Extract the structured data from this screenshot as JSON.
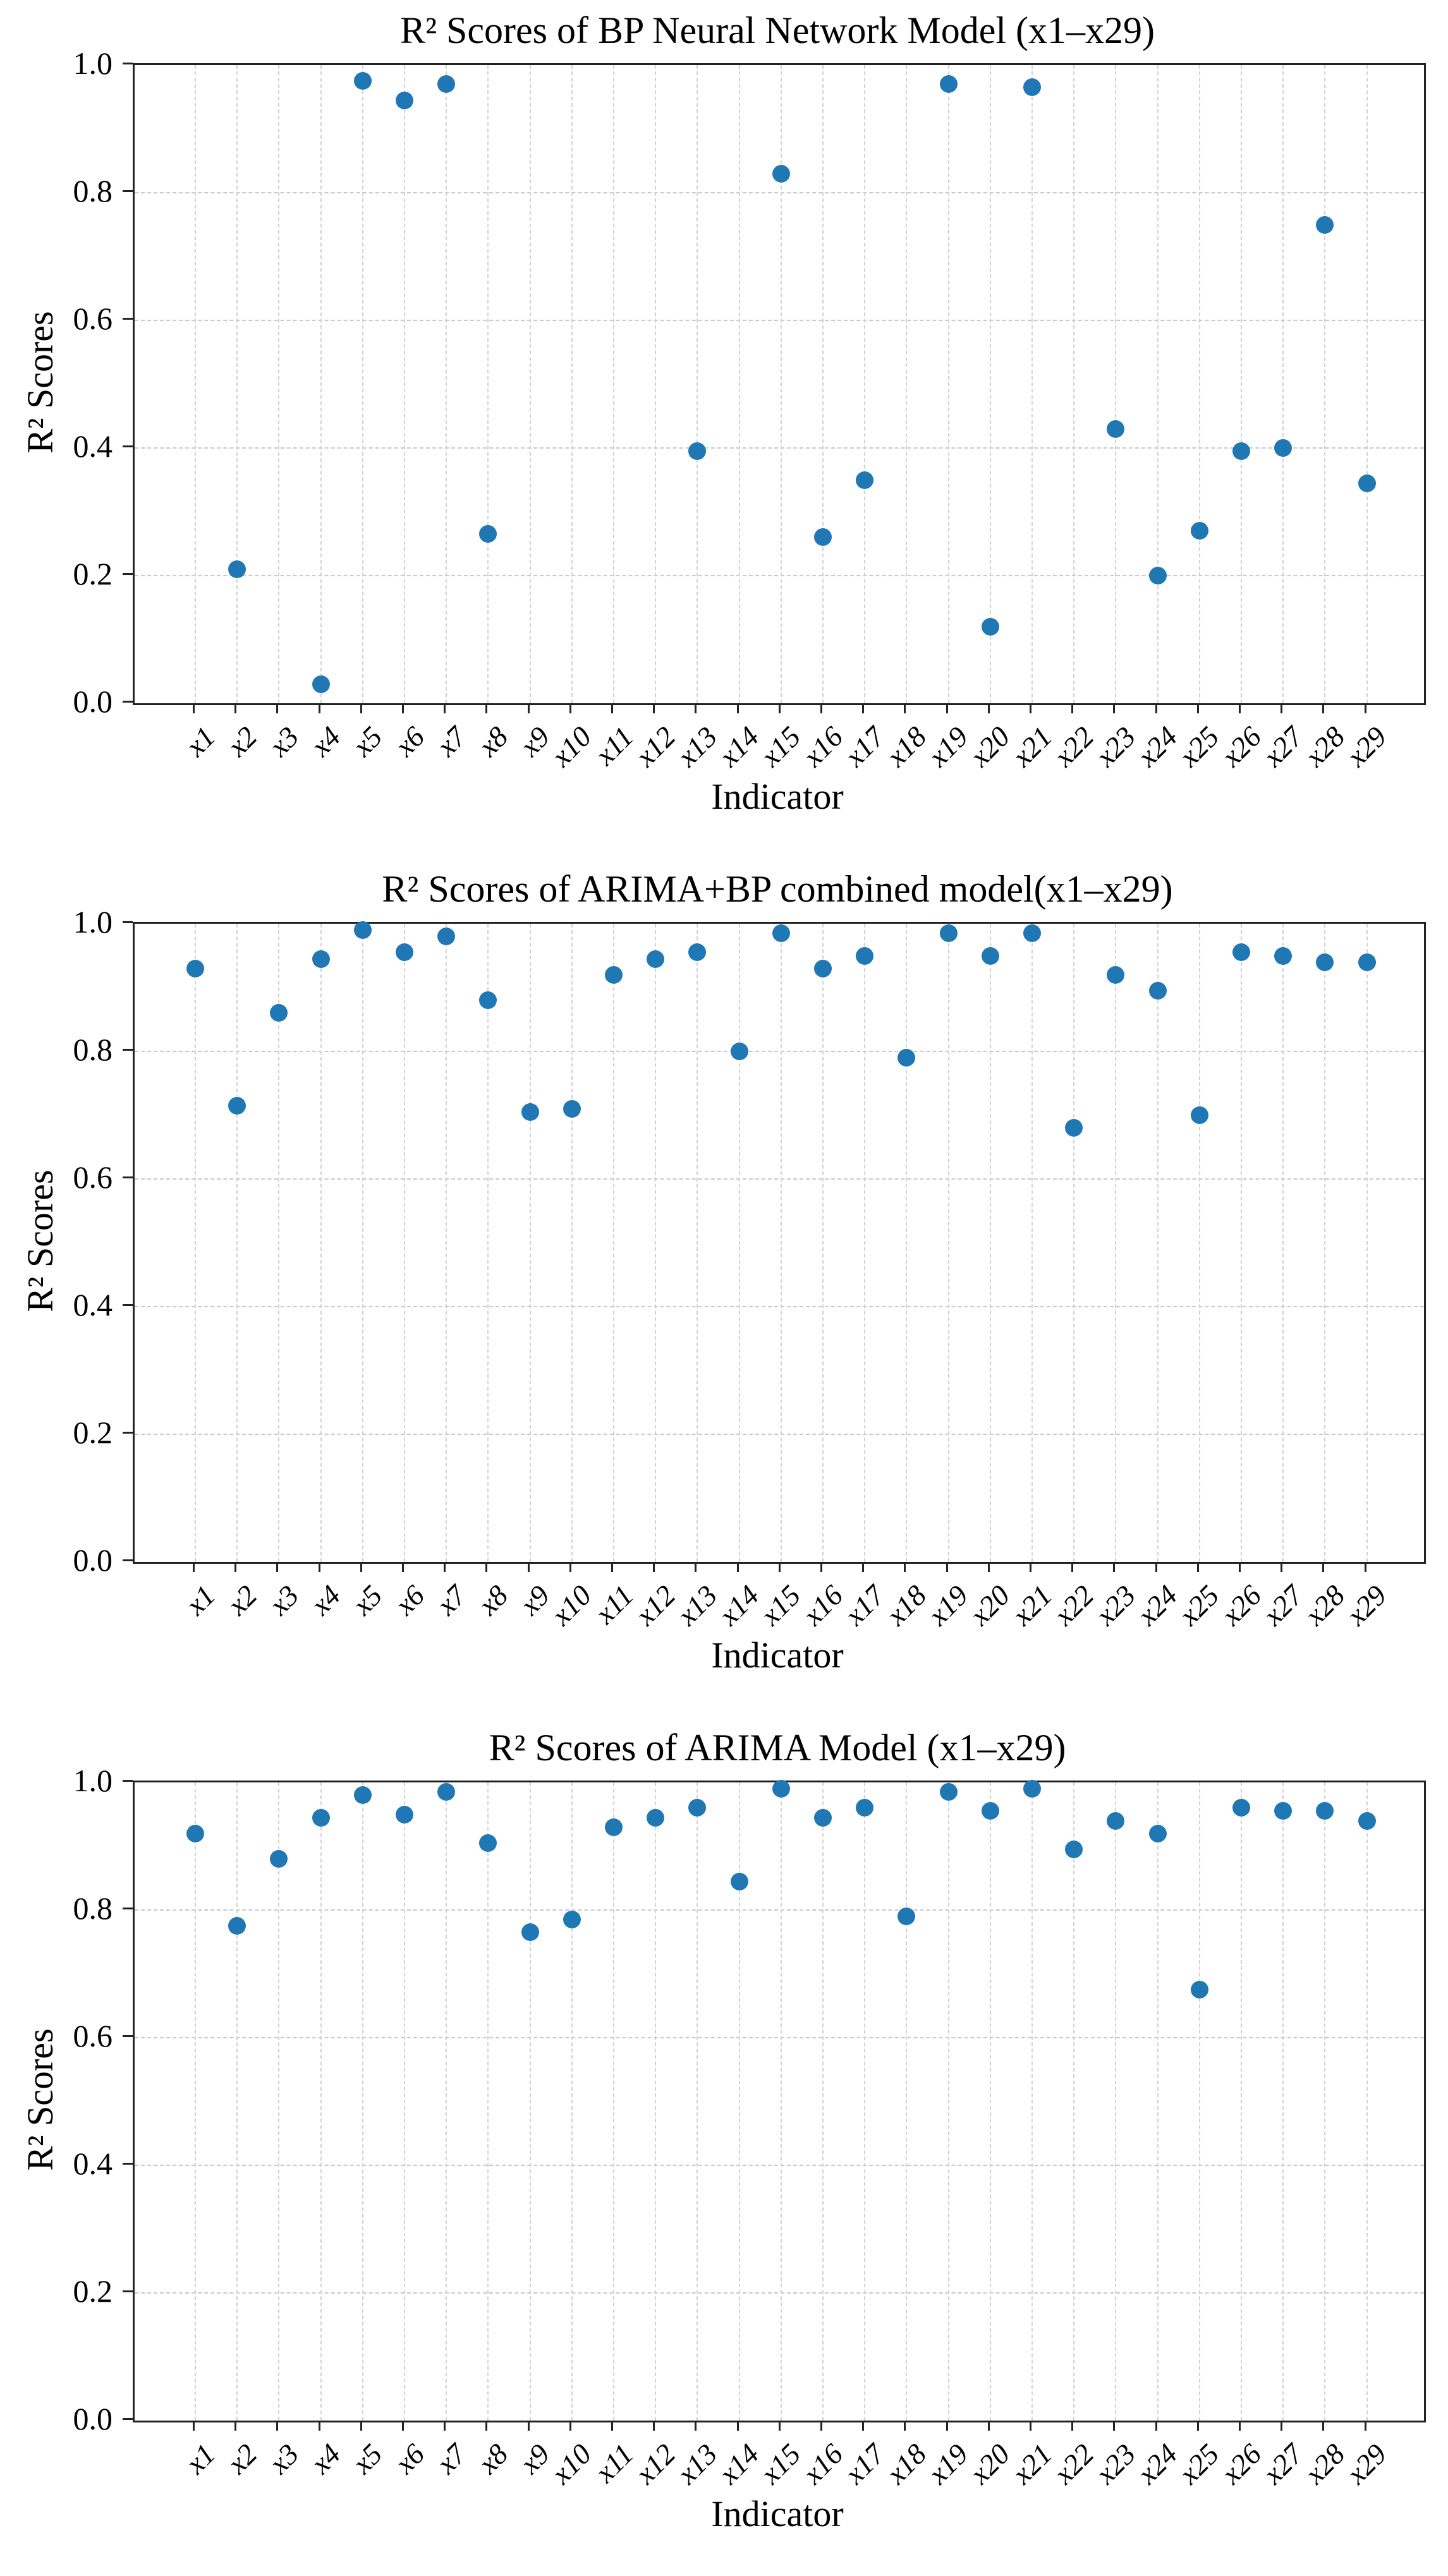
{
  "figure": {
    "background": "#ffffff"
  },
  "colors": {
    "marker": "#1f77b4",
    "grid": "#cccccc",
    "spine": "#222222",
    "text": "#000000"
  },
  "chart_data": [
    {
      "type": "scatter",
      "title": "R² Scores of BP Neural Network Model (x1–x29)",
      "xlabel": "Indicator",
      "ylabel": "R² Scores",
      "categories": [
        "x1",
        "x2",
        "x3",
        "x4",
        "x5",
        "x6",
        "x7",
        "x8",
        "x9",
        "x10",
        "x11",
        "x12",
        "x13",
        "x14",
        "x15",
        "x16",
        "x17",
        "x18",
        "x19",
        "x20",
        "x21",
        "x22",
        "x23",
        "x24",
        "x25",
        "x26",
        "x27",
        "x28",
        "x29"
      ],
      "values": [
        null,
        0.21,
        null,
        0.03,
        0.975,
        0.945,
        0.97,
        0.265,
        null,
        null,
        null,
        null,
        0.395,
        null,
        0.83,
        0.26,
        0.35,
        null,
        0.97,
        0.12,
        0.965,
        null,
        0.43,
        0.2,
        0.27,
        0.395,
        0.4,
        0.75,
        0.345
      ],
      "ylim": [
        0.0,
        1.0
      ],
      "yticks": [
        0.0,
        0.2,
        0.4,
        0.6,
        0.8,
        1.0
      ],
      "ytick_labels": [
        "0.0",
        "0.2",
        "0.4",
        "0.6",
        "0.8",
        "1.0"
      ],
      "grid": true,
      "legend": "none",
      "marker": "circle"
    },
    {
      "type": "scatter",
      "title": "R² Scores of ARIMA+BP combined model(x1–x29)",
      "xlabel": "Indicator",
      "ylabel": "R² Scores",
      "categories": [
        "x1",
        "x2",
        "x3",
        "x4",
        "x5",
        "x6",
        "x7",
        "x8",
        "x9",
        "x10",
        "x11",
        "x12",
        "x13",
        "x14",
        "x15",
        "x16",
        "x17",
        "x18",
        "x19",
        "x20",
        "x21",
        "x22",
        "x23",
        "x24",
        "x25",
        "x26",
        "x27",
        "x28",
        "x29"
      ],
      "values": [
        0.93,
        0.715,
        0.86,
        0.945,
        0.99,
        0.955,
        0.98,
        0.88,
        0.705,
        0.71,
        0.92,
        0.945,
        0.955,
        0.8,
        0.985,
        0.93,
        0.95,
        0.79,
        0.985,
        0.95,
        0.985,
        0.68,
        0.92,
        0.895,
        0.7,
        0.955,
        0.95,
        0.94,
        0.94
      ],
      "ylim": [
        0.0,
        1.0
      ],
      "yticks": [
        0.0,
        0.2,
        0.4,
        0.6,
        0.8,
        1.0
      ],
      "ytick_labels": [
        "0.0",
        "0.2",
        "0.4",
        "0.6",
        "0.8",
        "1.0"
      ],
      "grid": true,
      "legend": "none",
      "marker": "circle"
    },
    {
      "type": "scatter",
      "title": "R² Scores of ARIMA Model (x1–x29)",
      "xlabel": "Indicator",
      "ylabel": "R² Scores",
      "categories": [
        "x1",
        "x2",
        "x3",
        "x4",
        "x5",
        "x6",
        "x7",
        "x8",
        "x9",
        "x10",
        "x11",
        "x12",
        "x13",
        "x14",
        "x15",
        "x16",
        "x17",
        "x18",
        "x19",
        "x20",
        "x21",
        "x22",
        "x23",
        "x24",
        "x25",
        "x26",
        "x27",
        "x28",
        "x29"
      ],
      "values": [
        0.92,
        0.775,
        0.88,
        0.945,
        0.98,
        0.95,
        0.985,
        0.905,
        0.765,
        0.785,
        0.93,
        0.945,
        0.96,
        0.845,
        0.99,
        0.945,
        0.96,
        0.79,
        0.985,
        0.955,
        0.99,
        0.895,
        0.94,
        0.92,
        0.675,
        0.96,
        0.955,
        0.955,
        0.94
      ],
      "ylim": [
        0.0,
        1.0
      ],
      "yticks": [
        0.0,
        0.2,
        0.4,
        0.6,
        0.8,
        1.0
      ],
      "ytick_labels": [
        "0.0",
        "0.2",
        "0.4",
        "0.6",
        "0.8",
        "1.0"
      ],
      "grid": true,
      "legend": "none",
      "marker": "circle"
    }
  ]
}
